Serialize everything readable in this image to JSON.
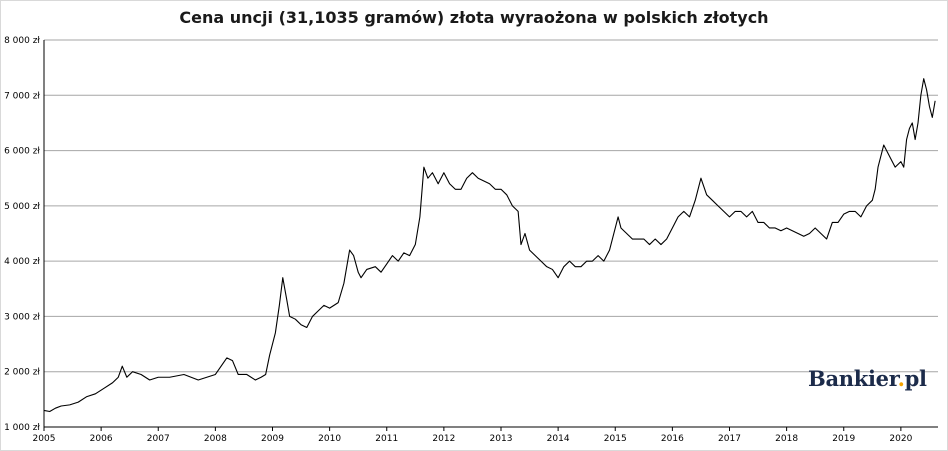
{
  "chart_data": {
    "type": "line",
    "title": "Cena uncji (31,1035 gramów) złota wyraożona w polskich złotych",
    "xlabel": "",
    "ylabel": "",
    "ylim": [
      1000,
      8000
    ],
    "xlim": [
      2005.0,
      2020.65
    ],
    "grid": "horizontal",
    "legend": "none",
    "line_color": "#000000",
    "y_ticks": [
      {
        "value": 1000,
        "label": "1 000 zł"
      },
      {
        "value": 2000,
        "label": "2 000 zł"
      },
      {
        "value": 3000,
        "label": "3 000 zł"
      },
      {
        "value": 4000,
        "label": "4 000 zł"
      },
      {
        "value": 5000,
        "label": "5 000 zł"
      },
      {
        "value": 6000,
        "label": "6 000 zł"
      },
      {
        "value": 7000,
        "label": "7 000 zł"
      },
      {
        "value": 8000,
        "label": "8 000 zł"
      }
    ],
    "x_ticks": [
      {
        "value": 2005,
        "label": "2005"
      },
      {
        "value": 2006,
        "label": "2006"
      },
      {
        "value": 2007,
        "label": "2007"
      },
      {
        "value": 2008,
        "label": "2008"
      },
      {
        "value": 2009,
        "label": "2009"
      },
      {
        "value": 2010,
        "label": "2010"
      },
      {
        "value": 2011,
        "label": "2011"
      },
      {
        "value": 2012,
        "label": "2012"
      },
      {
        "value": 2013,
        "label": "2013"
      },
      {
        "value": 2014,
        "label": "2014"
      },
      {
        "value": 2015,
        "label": "2015"
      },
      {
        "value": 2016,
        "label": "2016"
      },
      {
        "value": 2017,
        "label": "2017"
      },
      {
        "value": 2018,
        "label": "2018"
      },
      {
        "value": 2019,
        "label": "2019"
      },
      {
        "value": 2020,
        "label": "2020"
      }
    ],
    "series": [
      {
        "x": [
          2005.0,
          2005.1,
          2005.2,
          2005.3,
          2005.45,
          2005.6,
          2005.75,
          2005.9,
          2006.05,
          2006.2,
          2006.3,
          2006.37,
          2006.45,
          2006.55,
          2006.7,
          2006.85,
          2007.0,
          2007.2,
          2007.45,
          2007.7,
          2007.85,
          2008.0,
          2008.1,
          2008.2,
          2008.3,
          2008.4,
          2008.55,
          2008.7,
          2008.8,
          2008.88,
          2008.95,
          2009.05,
          2009.12,
          2009.18,
          2009.25,
          2009.3,
          2009.4,
          2009.5,
          2009.6,
          2009.7,
          2009.8,
          2009.9,
          2010.0,
          2010.15,
          2010.25,
          2010.35,
          2010.42,
          2010.5,
          2010.55,
          2010.65,
          2010.8,
          2010.9,
          2011.0,
          2011.1,
          2011.2,
          2011.3,
          2011.4,
          2011.5,
          2011.58,
          2011.65,
          2011.72,
          2011.8,
          2011.9,
          2012.0,
          2012.1,
          2012.2,
          2012.3,
          2012.4,
          2012.5,
          2012.6,
          2012.7,
          2012.8,
          2012.9,
          2013.0,
          2013.1,
          2013.2,
          2013.3,
          2013.35,
          2013.42,
          2013.5,
          2013.6,
          2013.7,
          2013.8,
          2013.9,
          2014.0,
          2014.1,
          2014.2,
          2014.3,
          2014.4,
          2014.5,
          2014.6,
          2014.7,
          2014.8,
          2014.9,
          2015.0,
          2015.05,
          2015.1,
          2015.2,
          2015.3,
          2015.4,
          2015.5,
          2015.6,
          2015.7,
          2015.8,
          2015.9,
          2016.0,
          2016.1,
          2016.2,
          2016.3,
          2016.4,
          2016.5,
          2016.6,
          2016.7,
          2016.8,
          2016.9,
          2017.0,
          2017.1,
          2017.2,
          2017.3,
          2017.4,
          2017.5,
          2017.6,
          2017.7,
          2017.8,
          2017.9,
          2018.0,
          2018.1,
          2018.2,
          2018.3,
          2018.4,
          2018.5,
          2018.6,
          2018.7,
          2018.8,
          2018.9,
          2019.0,
          2019.1,
          2019.2,
          2019.3,
          2019.4,
          2019.5,
          2019.55,
          2019.6,
          2019.7,
          2019.8,
          2019.9,
          2020.0,
          2020.05,
          2020.1,
          2020.15,
          2020.2,
          2020.25,
          2020.3,
          2020.35,
          2020.4,
          2020.45,
          2020.5,
          2020.55,
          2020.6
        ],
        "y": [
          1300,
          1280,
          1340,
          1380,
          1400,
          1450,
          1550,
          1600,
          1700,
          1800,
          1900,
          2100,
          1900,
          2000,
          1950,
          1850,
          1900,
          1900,
          1950,
          1850,
          1900,
          1950,
          2100,
          2250,
          2200,
          1950,
          1950,
          1850,
          1900,
          1950,
          2300,
          2700,
          3200,
          3700,
          3300,
          3000,
          2950,
          2850,
          2800,
          3000,
          3100,
          3200,
          3150,
          3250,
          3600,
          4200,
          4100,
          3800,
          3700,
          3850,
          3900,
          3800,
          3950,
          4100,
          4000,
          4150,
          4100,
          4300,
          4800,
          5700,
          5500,
          5600,
          5400,
          5600,
          5400,
          5300,
          5300,
          5500,
          5600,
          5500,
          5450,
          5400,
          5300,
          5300,
          5200,
          5000,
          4900,
          4300,
          4500,
          4200,
          4100,
          4000,
          3900,
          3850,
          3700,
          3900,
          4000,
          3900,
          3900,
          4000,
          4000,
          4100,
          4000,
          4200,
          4600,
          4800,
          4600,
          4500,
          4400,
          4400,
          4400,
          4300,
          4400,
          4300,
          4400,
          4600,
          4800,
          4900,
          4800,
          5100,
          5500,
          5200,
          5100,
          5000,
          4900,
          4800,
          4900,
          4900,
          4800,
          4900,
          4700,
          4700,
          4600,
          4600,
          4550,
          4600,
          4550,
          4500,
          4450,
          4500,
          4600,
          4500,
          4400,
          4700,
          4700,
          4850,
          4900,
          4900,
          4800,
          5000,
          5100,
          5300,
          5700,
          6100,
          5900,
          5700,
          5800,
          5700,
          6200,
          6400,
          6500,
          6200,
          6500,
          7000,
          7300,
          7100,
          6800,
          6600,
          6900
        ]
      }
    ]
  },
  "logo": {
    "text": "Bankier",
    "dot": ".",
    "suffix": "pl"
  }
}
